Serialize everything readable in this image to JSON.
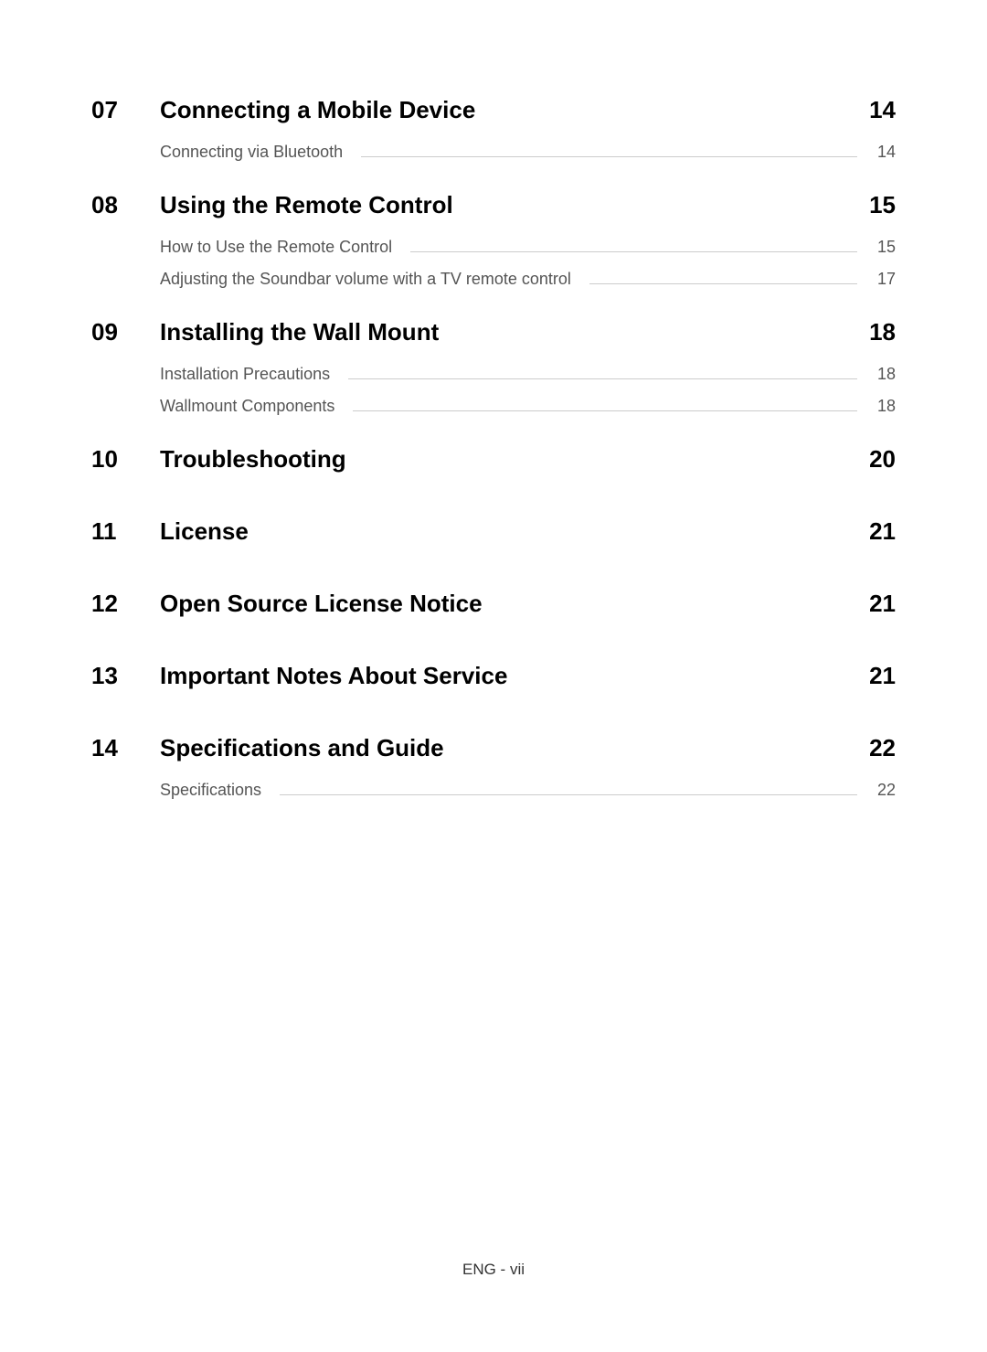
{
  "footer": "ENG - vii",
  "sections": [
    {
      "number": "07",
      "title": "Connecting a Mobile Device",
      "page": "14",
      "subsections": [
        {
          "title": "Connecting via Bluetooth",
          "page": "14"
        }
      ]
    },
    {
      "number": "08",
      "title": "Using the Remote Control",
      "page": "15",
      "subsections": [
        {
          "title": "How to Use the Remote Control",
          "page": "15"
        },
        {
          "title": "Adjusting the Soundbar volume with a TV remote control",
          "page": "17"
        }
      ]
    },
    {
      "number": "09",
      "title": "Installing the Wall Mount",
      "page": "18",
      "subsections": [
        {
          "title": "Installation Precautions",
          "page": "18"
        },
        {
          "title": "Wallmount Components",
          "page": "18"
        }
      ]
    },
    {
      "number": "10",
      "title": "Troubleshooting",
      "page": "20",
      "subsections": []
    },
    {
      "number": "11",
      "title": "License",
      "page": "21",
      "subsections": []
    },
    {
      "number": "12",
      "title": "Open Source License Notice",
      "page": "21",
      "subsections": []
    },
    {
      "number": "13",
      "title": "Important Notes About Service",
      "page": "21",
      "subsections": []
    },
    {
      "number": "14",
      "title": "Specifications and Guide",
      "page": "22",
      "subsections": [
        {
          "title": "Specifications",
          "page": "22"
        }
      ]
    }
  ]
}
